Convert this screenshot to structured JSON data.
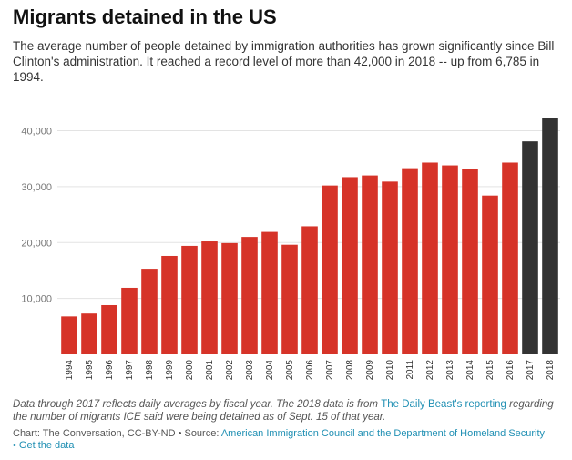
{
  "header": {
    "title": "Migrants detained in the US",
    "subtitle": "The average number of people detained by immigration authorities has grown significantly since Bill Clinton's administration. It reached a record level of more than 42,000 in 2018 -- up from 6,785 in 1994."
  },
  "notes": {
    "text_before_link": "Data through 2017 reflects daily averages by fiscal year. The 2018 data is from ",
    "link_text": "The Daily Beast's reporting",
    "text_after_link": " regarding the number of migrants ICE said were being detained as of Sept. 15 of that year."
  },
  "footer": {
    "credit": "Chart: The Conversation, CC-BY-ND • Source: ",
    "source_link": "American Immigration Council and the Department of Homeland Security",
    "separator": "• ",
    "get_data_link": "Get the data"
  },
  "colors": {
    "bar_main": "#d63328",
    "bar_highlight": "#333333",
    "gridline": "#e3e3e3"
  },
  "chart_data": {
    "type": "bar",
    "title": "Migrants detained in the US",
    "xlabel": "",
    "ylabel": "",
    "categories": [
      "1994",
      "1995",
      "1996",
      "1997",
      "1998",
      "1999",
      "2000",
      "2001",
      "2002",
      "2003",
      "2004",
      "2005",
      "2006",
      "2007",
      "2008",
      "2009",
      "2010",
      "2011",
      "2012",
      "2013",
      "2014",
      "2015",
      "2016",
      "2017",
      "2018"
    ],
    "values": [
      6785,
      7300,
      8800,
      11900,
      15300,
      17600,
      19400,
      20200,
      19900,
      21000,
      21900,
      19600,
      22900,
      30200,
      31700,
      32000,
      30900,
      33300,
      34300,
      33800,
      33200,
      28400,
      34300,
      38100,
      42200
    ],
    "highlighted_categories": [
      "2017",
      "2018"
    ],
    "ylim": [
      0,
      42200
    ],
    "yticks": [
      10000,
      20000,
      30000,
      40000
    ],
    "ytick_labels": [
      "10,000",
      "20,000",
      "30,000",
      "40,000"
    ],
    "grid": true,
    "legend": "none"
  }
}
